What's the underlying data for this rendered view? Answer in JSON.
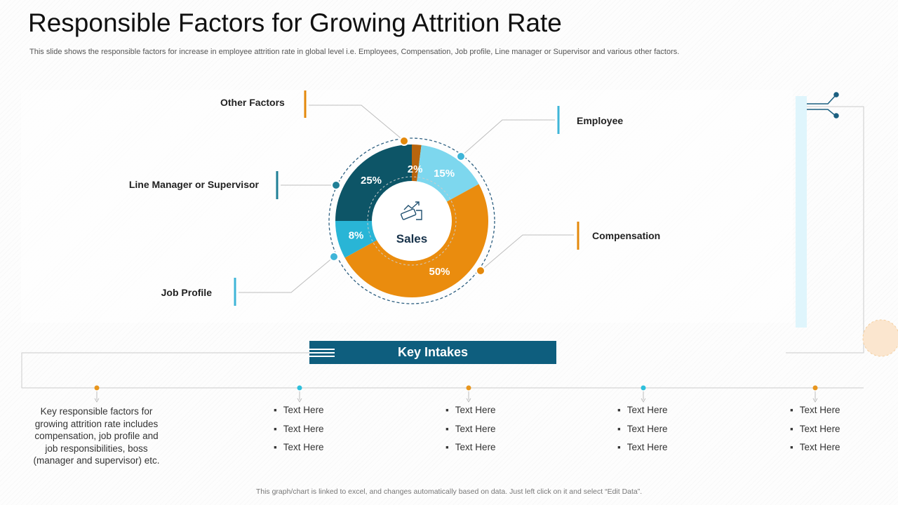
{
  "slide": {
    "title": "Responsible Factors for Growing Attrition Rate",
    "subtitle": "This slide shows the responsible factors for increase in employee attrition rate in global level i.e. Employees, Compensation, Job profile, Line manager or Supervisor and various other factors.",
    "footer": "This graph/chart is linked to excel, and changes automatically based on data. Just left click on it and select “Edit Data”."
  },
  "chart_data": {
    "type": "pie",
    "center_label": "Sales",
    "center_icon": "money-growth-icon",
    "categories": [
      "Other Factors",
      "Employee",
      "Compensation",
      "Job Profile",
      "Line Manager or Supervisor"
    ],
    "values": [
      2,
      15,
      50,
      8,
      25
    ],
    "labels": [
      "2%",
      "15%",
      "50%",
      "8%",
      "25%"
    ],
    "colors": [
      "#b8650e",
      "#7dd7ee",
      "#ea8c0e",
      "#29b5d6",
      "#0d5567"
    ],
    "marker_colors": [
      "#e4890c",
      "#3fb5d8",
      "#e4890c",
      "#3fb5d8",
      "#1f7f96"
    ]
  },
  "key_intakes": {
    "title": "Key Intakes",
    "intro": "Key responsible factors for growing attrition rate includes compensation, job profile and job responsibilities, boss (manager and supervisor) etc.",
    "columns": [
      [
        "Text Here",
        "Text Here",
        "Text Here"
      ],
      [
        "Text Here",
        "Text Here",
        "Text Here"
      ],
      [
        "Text Here",
        "Text Here",
        "Text Here"
      ],
      [
        "Text Here",
        "Text Here",
        "Text Here"
      ]
    ],
    "dot_colors": [
      "#e8961e",
      "#2ec0dc",
      "#e8961e",
      "#2ec0dc",
      "#e8961e"
    ]
  }
}
